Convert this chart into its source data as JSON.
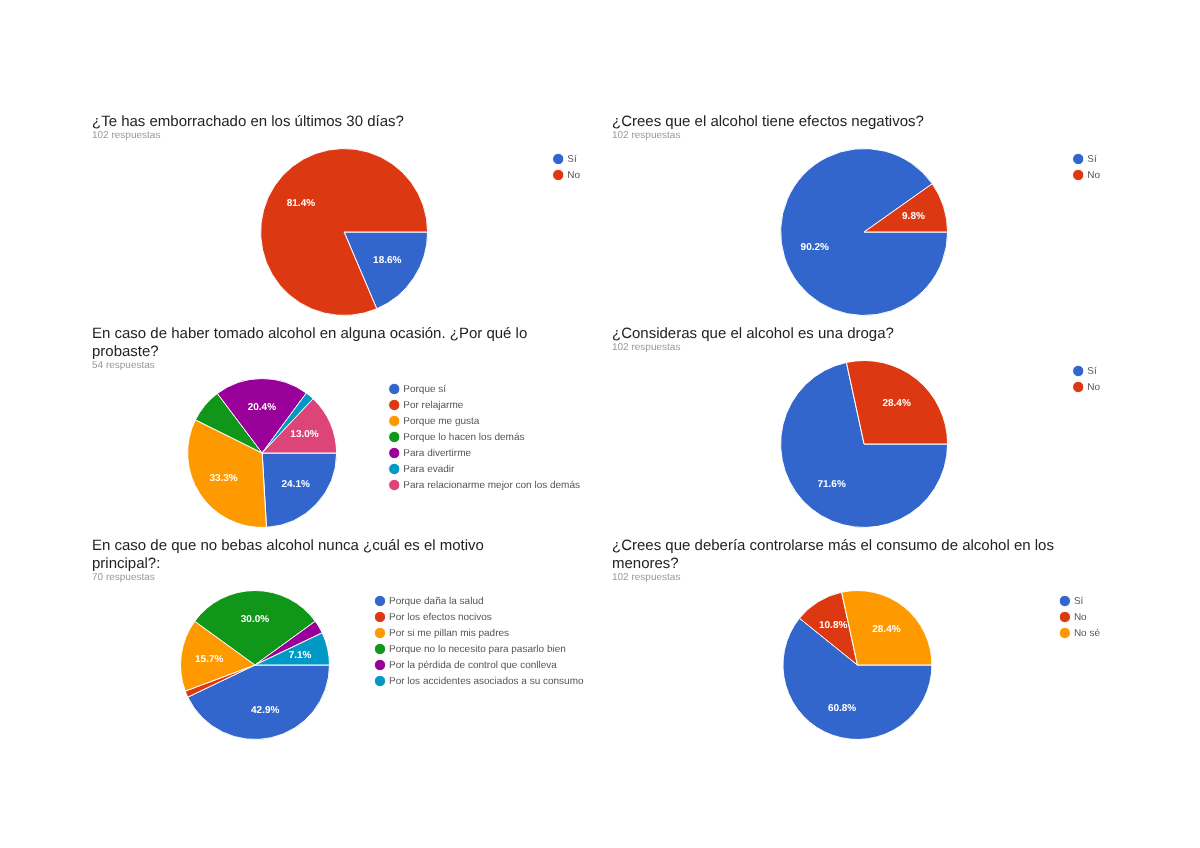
{
  "chart_data": [
    {
      "type": "pie",
      "title": "¿Te has emborrachado en los últimos 30 días?",
      "subtitle": "102 respuestas",
      "categories": [
        "Sí",
        "No"
      ],
      "values": [
        18.6,
        81.4
      ],
      "colors": [
        "#3366cc",
        "#dc3912"
      ],
      "value_labels": [
        "18.6%",
        "81.4%"
      ],
      "legend": "right"
    },
    {
      "type": "pie",
      "title": "¿Crees que el alcohol tiene efectos negativos?",
      "subtitle": "102 respuestas",
      "categories": [
        "Sí",
        "No"
      ],
      "values": [
        90.2,
        9.8
      ],
      "colors": [
        "#3366cc",
        "#dc3912"
      ],
      "value_labels": [
        "90.2%",
        "9.8%"
      ],
      "legend": "right"
    },
    {
      "type": "pie",
      "title": "En caso de haber tomado alcohol en alguna ocasión. ¿Por qué lo probaste?",
      "subtitle": "54 respuestas",
      "categories": [
        "Porque sí",
        "Por relajarme",
        "Porque me gusta",
        "Porque lo hacen los demás",
        "Para divertirme",
        "Para evadir",
        "Para relacionarme mejor con los demás"
      ],
      "values": [
        24.1,
        0,
        33.3,
        7.4,
        20.4,
        1.9,
        13.0
      ],
      "colors": [
        "#3366cc",
        "#dc3912",
        "#ff9900",
        "#109618",
        "#990099",
        "#0099c6",
        "#dd4477"
      ],
      "value_labels": [
        "24.1%",
        null,
        "33.3%",
        null,
        "20.4%",
        null,
        "13.0%"
      ],
      "legend": "right"
    },
    {
      "type": "pie",
      "title": "¿Consideras que el alcohol es una droga?",
      "subtitle": "102 respuestas",
      "categories": [
        "Sí",
        "No"
      ],
      "values": [
        71.6,
        28.4
      ],
      "colors": [
        "#3366cc",
        "#dc3912"
      ],
      "value_labels": [
        "71.6%",
        "28.4%"
      ],
      "legend": "right"
    },
    {
      "type": "pie",
      "title": "En caso de que no bebas alcohol nunca ¿cuál es el motivo principal?:",
      "subtitle": "70 respuestas",
      "categories": [
        "Porque daña la salud",
        "Por los efectos nocivos",
        "Por si me pillan mis padres",
        "Porque no lo necesito para pasarlo bien",
        "Por la pérdida de control que conlleva",
        "Por los accidentes asociados a su consumo"
      ],
      "values": [
        42.9,
        1.4,
        15.7,
        30.0,
        2.9,
        7.1
      ],
      "colors": [
        "#3366cc",
        "#dc3912",
        "#ff9900",
        "#109618",
        "#990099",
        "#0099c6"
      ],
      "value_labels": [
        "42.9%",
        null,
        "15.7%",
        "30.0%",
        null,
        "7.1%"
      ],
      "legend": "right"
    },
    {
      "type": "pie",
      "title": "¿Crees que debería controlarse más el consumo de alcohol en los menores?",
      "subtitle": "102 respuestas",
      "categories": [
        "Sí",
        "No",
        "No sé"
      ],
      "values": [
        60.8,
        10.8,
        28.4
      ],
      "colors": [
        "#3366cc",
        "#dc3912",
        "#ff9900"
      ],
      "value_labels": [
        "60.8%",
        "10.8%",
        "28.4%"
      ],
      "legend": "right"
    }
  ]
}
